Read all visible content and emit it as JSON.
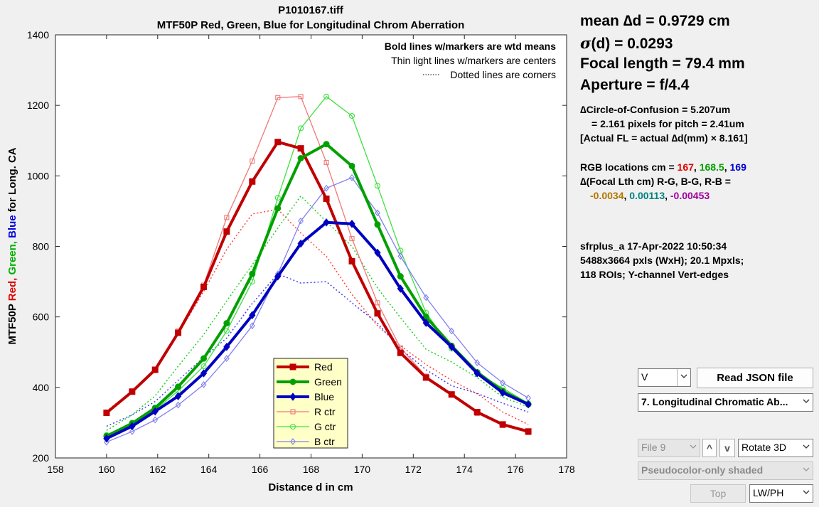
{
  "chart_data": {
    "type": "line",
    "title": "P1010167.tiff",
    "subtitle": "MTF50P Red, Green, Blue  for Longitudinal Chrom Aberration",
    "xlabel": "Distance d in cm",
    "ylabel_parts": [
      {
        "text": "MTF50P ",
        "color": "#000000"
      },
      {
        "text": "Red,  ",
        "color": "#e00000"
      },
      {
        "text": "Green,  ",
        "color": "#00b000"
      },
      {
        "text": "Blue  ",
        "color": "#0000e0"
      },
      {
        "text": "for Long. CA",
        "color": "#000000"
      }
    ],
    "xlim": [
      158,
      178
    ],
    "ylim": [
      200,
      1400
    ],
    "xticks": [
      "158",
      "160",
      "162",
      "164",
      "166",
      "168",
      "170",
      "172",
      "174",
      "176",
      "178"
    ],
    "yticks": [
      "200",
      "400",
      "600",
      "800",
      "1000",
      "1200",
      "1400"
    ],
    "x": [
      160,
      161,
      161.9,
      162.8,
      163.8,
      164.7,
      165.7,
      166.7,
      167.6,
      168.6,
      169.6,
      170.6,
      171.5,
      172.5,
      173.5,
      174.5,
      175.5,
      176.5
    ],
    "notes": [
      "Bold lines w/markers are wtd means",
      "Thin light lines w/markers are centers",
      "Dotted lines are corners"
    ],
    "series": [
      {
        "name": "Red",
        "group": "mean",
        "marker": "square",
        "color": "#c00000",
        "values": [
          328,
          388,
          450,
          555,
          685,
          842,
          984,
          1096,
          1078,
          935,
          758,
          610,
          498,
          428,
          380,
          330,
          295,
          275
        ]
      },
      {
        "name": "Green",
        "group": "mean",
        "marker": "circle",
        "color": "#00a000",
        "values": [
          262,
          298,
          342,
          402,
          482,
          582,
          722,
          908,
          1050,
          1090,
          1028,
          862,
          715,
          600,
          518,
          443,
          390,
          352
        ]
      },
      {
        "name": "Blue",
        "group": "mean",
        "marker": "diamond",
        "color": "#0000c0",
        "values": [
          255,
          290,
          332,
          375,
          440,
          515,
          605,
          715,
          808,
          868,
          864,
          782,
          680,
          583,
          515,
          440,
          385,
          352
        ]
      },
      {
        "name": "R ctr",
        "group": "center",
        "marker": "square",
        "color": "#f07878",
        "values": [
          330,
          390,
          452,
          560,
          690,
          882,
          1042,
          1222,
          1225,
          1038,
          822,
          640,
          512,
          432,
          382,
          326,
          292,
          272
        ]
      },
      {
        "name": "G ctr",
        "group": "center",
        "marker": "circle",
        "color": "#40e040",
        "values": [
          265,
          300,
          336,
          390,
          460,
          560,
          700,
          938,
          1135,
          1225,
          1170,
          972,
          788,
          612,
          510,
          440,
          398,
          355
        ]
      },
      {
        "name": "B ctr",
        "group": "center",
        "marker": "diamond",
        "color": "#8080f0",
        "values": [
          245,
          275,
          308,
          350,
          408,
          482,
          575,
          722,
          872,
          965,
          995,
          895,
          772,
          655,
          560,
          470,
          413,
          370
        ]
      },
      {
        "group": "corner",
        "color": "#ff4040",
        "values": [
          333,
          390,
          448,
          552,
          672,
          792,
          892,
          905,
          838,
          772,
          664,
          575,
          518,
          465,
          420,
          382,
          330,
          295
        ]
      },
      {
        "group": "corner",
        "color": "#20d020",
        "values": [
          278,
          322,
          376,
          460,
          550,
          645,
          748,
          852,
          943,
          870,
          800,
          682,
          598,
          508,
          472,
          428,
          372,
          345
        ]
      },
      {
        "group": "corner",
        "color": "#4040f0",
        "values": [
          290,
          322,
          360,
          420,
          485,
          540,
          638,
          722,
          696,
          700,
          640,
          582,
          510,
          450,
          405,
          383,
          355,
          330
        ]
      }
    ]
  },
  "info": {
    "mean_d": "mean ∆d = 0.9729 cm",
    "sigma_prefix": "σ",
    "sigma_rest": "(d) = 0.0293",
    "focal_length": "Focal length = 79.4 mm",
    "aperture": "Aperture = f/4.4",
    "coc_line1": "∆Circle-of-Confusion = 5.207um",
    "coc_line2": "= 2.161 pixels for pitch = 2.41um",
    "coc_line3": "[Actual FL = actual ∆d(mm) × 8.161]",
    "rgb_label": "RGB locations cm = ",
    "rgb_red": "167",
    "rgb_green": "168.5",
    "rgb_blue": "169",
    "sep1": ", ",
    "sep2": ", ",
    "focal_delta_label": "∆(Focal Lth cm) R-G, B-G, R-B =",
    "fd_rg": "-0.0034",
    "fd_bg": "0.00113",
    "fd_rb": "-0.00453",
    "fd_sep1": ",  ",
    "fd_sep2": ",  ",
    "meta1": "sfrplus_a  17-Apr-2022 10:50:34",
    "meta2": "5488x3664 pxls (WxH);  20.1 Mpxls;",
    "meta3": "118 ROIs;  Y-channel      Vert-edges"
  },
  "colors": {
    "rg": "#b07800",
    "bg": "#008080",
    "rb": "#a000a0",
    "red": "#e00000",
    "green": "#00a000",
    "blue": "#0000d0"
  },
  "controls": {
    "channel_select": "V",
    "read_json_button": "Read JSON file",
    "plot_select": "7. Longitudinal Chromatic Ab...",
    "file_select": "File 9",
    "up_button": "^",
    "down_button": "v",
    "rotate_select": "Rotate 3D",
    "shading_select": "Pseudocolor-only shaded",
    "top_button": "Top",
    "units_select": "LW/PH"
  }
}
